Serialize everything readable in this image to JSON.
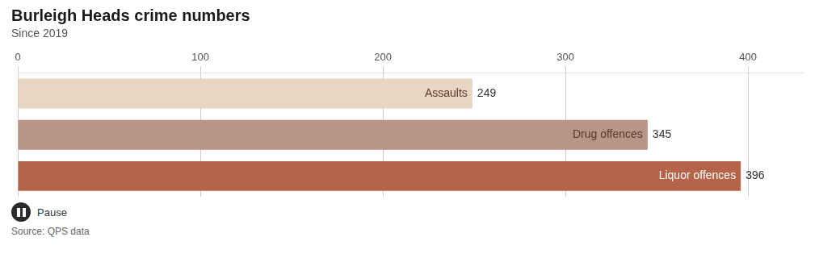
{
  "chart_data": {
    "type": "bar",
    "orientation": "horizontal",
    "title": "Burleigh Heads crime numbers",
    "subtitle": "Since 2019",
    "source": "Source: QPS data",
    "annotations": [
      "Pause"
    ],
    "categories": [
      "Liquor offences",
      "Drug offences",
      "Assaults"
    ],
    "values": [
      396,
      345,
      249
    ],
    "colors": [
      "#b5644a",
      "#b89585",
      "#e8d5c4"
    ],
    "xlim": [
      0,
      430
    ],
    "xticks": [
      0,
      100,
      200,
      300,
      400
    ],
    "grid": true,
    "data_labels": true,
    "tick_labels": "x"
  }
}
